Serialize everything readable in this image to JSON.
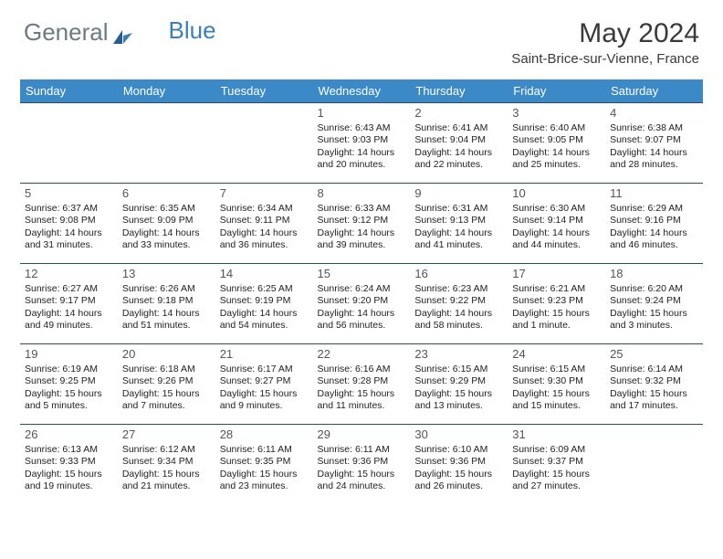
{
  "logo": {
    "part1": "General",
    "part2": "Blue"
  },
  "title": "May 2024",
  "location": "Saint-Brice-sur-Vienne, France",
  "colors": {
    "header_bg": "#3b89c6",
    "border": "#2a4a66",
    "logo_gray": "#6b7b84",
    "logo_blue": "#3b7fb5"
  },
  "weekdays": [
    "Sunday",
    "Monday",
    "Tuesday",
    "Wednesday",
    "Thursday",
    "Friday",
    "Saturday"
  ],
  "weeks": [
    [
      {
        "empty": true
      },
      {
        "empty": true
      },
      {
        "empty": true
      },
      {
        "n": "1",
        "sr": "Sunrise: 6:43 AM",
        "ss": "Sunset: 9:03 PM",
        "d1": "Daylight: 14 hours",
        "d2": "and 20 minutes."
      },
      {
        "n": "2",
        "sr": "Sunrise: 6:41 AM",
        "ss": "Sunset: 9:04 PM",
        "d1": "Daylight: 14 hours",
        "d2": "and 22 minutes."
      },
      {
        "n": "3",
        "sr": "Sunrise: 6:40 AM",
        "ss": "Sunset: 9:05 PM",
        "d1": "Daylight: 14 hours",
        "d2": "and 25 minutes."
      },
      {
        "n": "4",
        "sr": "Sunrise: 6:38 AM",
        "ss": "Sunset: 9:07 PM",
        "d1": "Daylight: 14 hours",
        "d2": "and 28 minutes."
      }
    ],
    [
      {
        "n": "5",
        "sr": "Sunrise: 6:37 AM",
        "ss": "Sunset: 9:08 PM",
        "d1": "Daylight: 14 hours",
        "d2": "and 31 minutes."
      },
      {
        "n": "6",
        "sr": "Sunrise: 6:35 AM",
        "ss": "Sunset: 9:09 PM",
        "d1": "Daylight: 14 hours",
        "d2": "and 33 minutes."
      },
      {
        "n": "7",
        "sr": "Sunrise: 6:34 AM",
        "ss": "Sunset: 9:11 PM",
        "d1": "Daylight: 14 hours",
        "d2": "and 36 minutes."
      },
      {
        "n": "8",
        "sr": "Sunrise: 6:33 AM",
        "ss": "Sunset: 9:12 PM",
        "d1": "Daylight: 14 hours",
        "d2": "and 39 minutes."
      },
      {
        "n": "9",
        "sr": "Sunrise: 6:31 AM",
        "ss": "Sunset: 9:13 PM",
        "d1": "Daylight: 14 hours",
        "d2": "and 41 minutes."
      },
      {
        "n": "10",
        "sr": "Sunrise: 6:30 AM",
        "ss": "Sunset: 9:14 PM",
        "d1": "Daylight: 14 hours",
        "d2": "and 44 minutes."
      },
      {
        "n": "11",
        "sr": "Sunrise: 6:29 AM",
        "ss": "Sunset: 9:16 PM",
        "d1": "Daylight: 14 hours",
        "d2": "and 46 minutes."
      }
    ],
    [
      {
        "n": "12",
        "sr": "Sunrise: 6:27 AM",
        "ss": "Sunset: 9:17 PM",
        "d1": "Daylight: 14 hours",
        "d2": "and 49 minutes."
      },
      {
        "n": "13",
        "sr": "Sunrise: 6:26 AM",
        "ss": "Sunset: 9:18 PM",
        "d1": "Daylight: 14 hours",
        "d2": "and 51 minutes."
      },
      {
        "n": "14",
        "sr": "Sunrise: 6:25 AM",
        "ss": "Sunset: 9:19 PM",
        "d1": "Daylight: 14 hours",
        "d2": "and 54 minutes."
      },
      {
        "n": "15",
        "sr": "Sunrise: 6:24 AM",
        "ss": "Sunset: 9:20 PM",
        "d1": "Daylight: 14 hours",
        "d2": "and 56 minutes."
      },
      {
        "n": "16",
        "sr": "Sunrise: 6:23 AM",
        "ss": "Sunset: 9:22 PM",
        "d1": "Daylight: 14 hours",
        "d2": "and 58 minutes."
      },
      {
        "n": "17",
        "sr": "Sunrise: 6:21 AM",
        "ss": "Sunset: 9:23 PM",
        "d1": "Daylight: 15 hours",
        "d2": "and 1 minute."
      },
      {
        "n": "18",
        "sr": "Sunrise: 6:20 AM",
        "ss": "Sunset: 9:24 PM",
        "d1": "Daylight: 15 hours",
        "d2": "and 3 minutes."
      }
    ],
    [
      {
        "n": "19",
        "sr": "Sunrise: 6:19 AM",
        "ss": "Sunset: 9:25 PM",
        "d1": "Daylight: 15 hours",
        "d2": "and 5 minutes."
      },
      {
        "n": "20",
        "sr": "Sunrise: 6:18 AM",
        "ss": "Sunset: 9:26 PM",
        "d1": "Daylight: 15 hours",
        "d2": "and 7 minutes."
      },
      {
        "n": "21",
        "sr": "Sunrise: 6:17 AM",
        "ss": "Sunset: 9:27 PM",
        "d1": "Daylight: 15 hours",
        "d2": "and 9 minutes."
      },
      {
        "n": "22",
        "sr": "Sunrise: 6:16 AM",
        "ss": "Sunset: 9:28 PM",
        "d1": "Daylight: 15 hours",
        "d2": "and 11 minutes."
      },
      {
        "n": "23",
        "sr": "Sunrise: 6:15 AM",
        "ss": "Sunset: 9:29 PM",
        "d1": "Daylight: 15 hours",
        "d2": "and 13 minutes."
      },
      {
        "n": "24",
        "sr": "Sunrise: 6:15 AM",
        "ss": "Sunset: 9:30 PM",
        "d1": "Daylight: 15 hours",
        "d2": "and 15 minutes."
      },
      {
        "n": "25",
        "sr": "Sunrise: 6:14 AM",
        "ss": "Sunset: 9:32 PM",
        "d1": "Daylight: 15 hours",
        "d2": "and 17 minutes."
      }
    ],
    [
      {
        "n": "26",
        "sr": "Sunrise: 6:13 AM",
        "ss": "Sunset: 9:33 PM",
        "d1": "Daylight: 15 hours",
        "d2": "and 19 minutes."
      },
      {
        "n": "27",
        "sr": "Sunrise: 6:12 AM",
        "ss": "Sunset: 9:34 PM",
        "d1": "Daylight: 15 hours",
        "d2": "and 21 minutes."
      },
      {
        "n": "28",
        "sr": "Sunrise: 6:11 AM",
        "ss": "Sunset: 9:35 PM",
        "d1": "Daylight: 15 hours",
        "d2": "and 23 minutes."
      },
      {
        "n": "29",
        "sr": "Sunrise: 6:11 AM",
        "ss": "Sunset: 9:36 PM",
        "d1": "Daylight: 15 hours",
        "d2": "and 24 minutes."
      },
      {
        "n": "30",
        "sr": "Sunrise: 6:10 AM",
        "ss": "Sunset: 9:36 PM",
        "d1": "Daylight: 15 hours",
        "d2": "and 26 minutes."
      },
      {
        "n": "31",
        "sr": "Sunrise: 6:09 AM",
        "ss": "Sunset: 9:37 PM",
        "d1": "Daylight: 15 hours",
        "d2": "and 27 minutes."
      },
      {
        "empty": true
      }
    ]
  ]
}
